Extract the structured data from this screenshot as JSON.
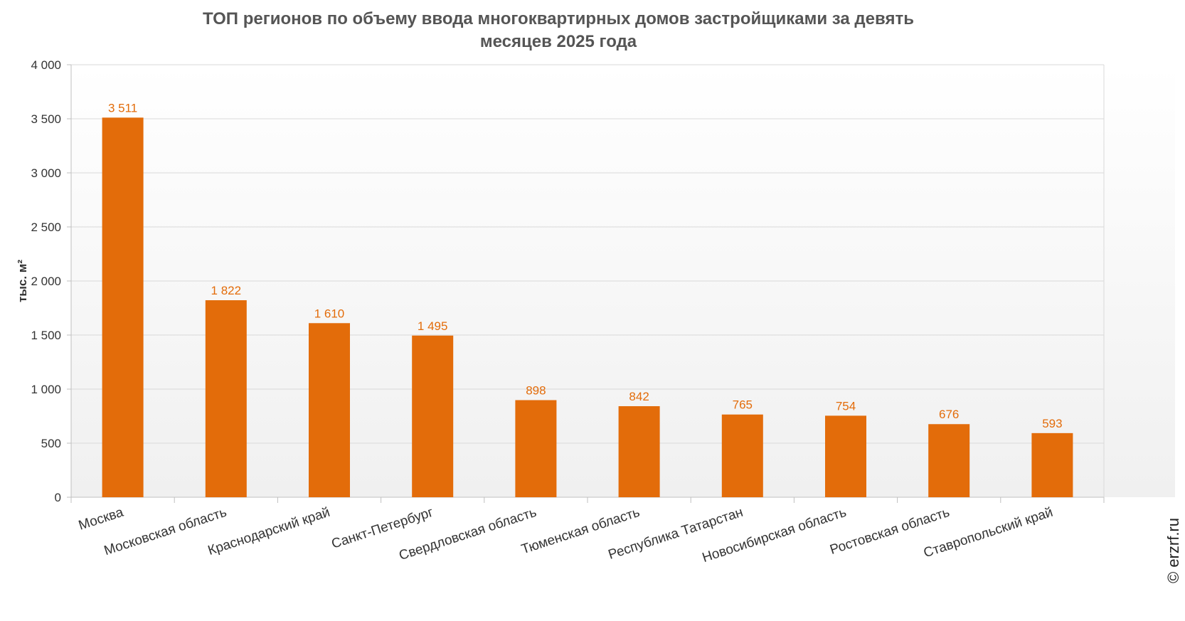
{
  "chart_data": {
    "type": "bar",
    "title_line1": "ТОП регионов по объему ввода многоквартирных домов застройщиками за девять",
    "title_line2": "месяцев 2025 года",
    "ylabel": "тыс. м²",
    "xlabel": "",
    "ylim": [
      0,
      4000
    ],
    "yticks": [
      0,
      500,
      1000,
      1500,
      2000,
      2500,
      3000,
      3500,
      4000
    ],
    "ytick_labels": [
      "0",
      "500",
      "1 000",
      "1 500",
      "2 000",
      "2 500",
      "3 000",
      "3 500",
      "4 000"
    ],
    "categories": [
      "Москва",
      "Московская область",
      "Краснодарский край",
      "Санкт-Петербург",
      "Свердловская область",
      "Тюменская область",
      "Республика Татарстан",
      "Новосибирская область",
      "Ростовская область",
      "Ставропольский край"
    ],
    "values": [
      3511,
      1822,
      1610,
      1495,
      898,
      842,
      765,
      754,
      676,
      593
    ],
    "value_labels": [
      "3 511",
      "1 822",
      "1 610",
      "1 495",
      "898",
      "842",
      "765",
      "754",
      "676",
      "593"
    ],
    "grid": true,
    "legend": "none",
    "colors": {
      "bar": "#E36C0A",
      "label": "#E36C0A",
      "grid": "#D9D9D9",
      "axis": "#BFBFBF",
      "plot_bg_top": "#FFFFFF",
      "plot_bg_bottom": "#F0F0F0"
    }
  },
  "watermark": "© erzrf.ru"
}
